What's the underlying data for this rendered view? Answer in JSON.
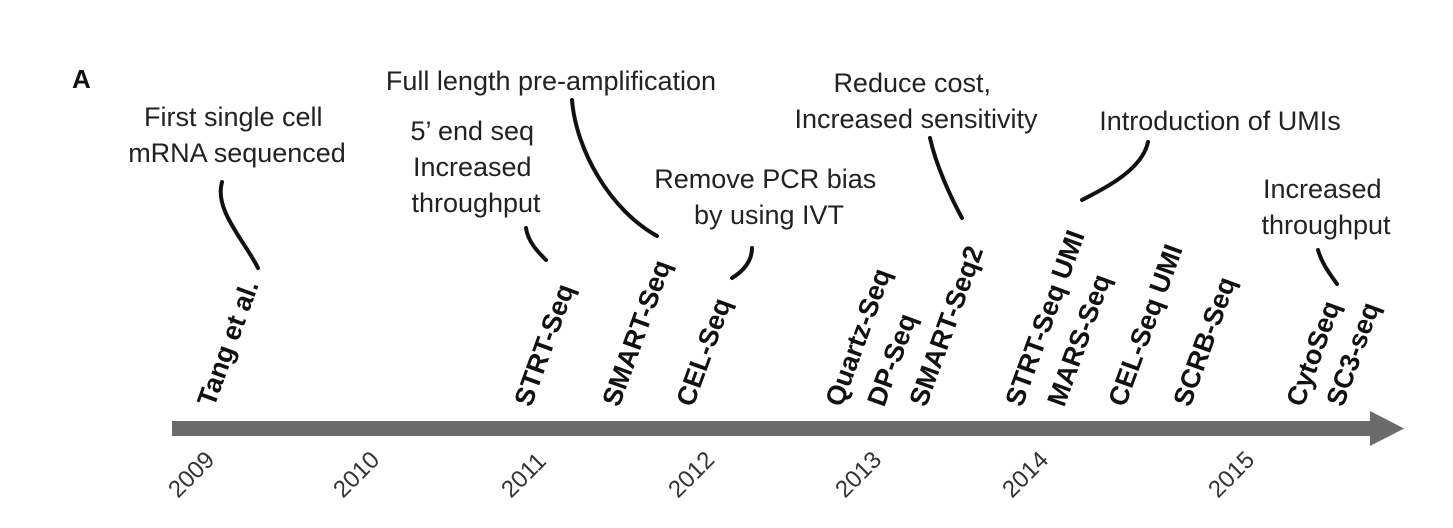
{
  "panel_label": "A",
  "timeline": {
    "years": [
      "2009",
      "2010",
      "2011",
      "2012",
      "2013",
      "2014",
      "2015"
    ],
    "arrow_color": "#6b6b6b"
  },
  "methods": [
    {
      "id": "tang",
      "label": "Tang et al."
    },
    {
      "id": "strt-seq",
      "label": "STRT-Seq"
    },
    {
      "id": "smart-seq",
      "label": "SMART-Seq"
    },
    {
      "id": "cel-seq",
      "label": "CEL-Seq"
    },
    {
      "id": "quartz-seq",
      "label": "Quartz-Seq"
    },
    {
      "id": "dp-seq",
      "label": "DP-Seq"
    },
    {
      "id": "smart-seq2",
      "label": "SMART-Seq2"
    },
    {
      "id": "strt-seq-umi",
      "label": "STRT-Seq UMI"
    },
    {
      "id": "mars-seq",
      "label": "MARS-Seq"
    },
    {
      "id": "cel-seq-umi",
      "label": "CEL-Seq UMI"
    },
    {
      "id": "scrb-seq",
      "label": "SCRB-Seq"
    },
    {
      "id": "cytoseq",
      "label": "CytoSeq"
    },
    {
      "id": "sc3-seq",
      "label": "SC3-seq"
    }
  ],
  "annotations": [
    {
      "id": "first-single-cell",
      "lines": [
        "First single cell",
        "mRNA sequenced"
      ]
    },
    {
      "id": "five-prime",
      "lines": [
        "5’ end seq",
        "Increased",
        "throughput"
      ]
    },
    {
      "id": "full-length",
      "lines": [
        "Full length pre-amplification"
      ]
    },
    {
      "id": "remove-pcr",
      "lines": [
        "Remove PCR bias",
        "by using IVT"
      ]
    },
    {
      "id": "reduce-cost",
      "lines": [
        "Reduce cost,",
        "Increased sensitivity"
      ]
    },
    {
      "id": "umis",
      "lines": [
        "Introduction of UMIs"
      ]
    },
    {
      "id": "increased-throughput",
      "lines": [
        "Increased",
        "throughput"
      ]
    }
  ]
}
